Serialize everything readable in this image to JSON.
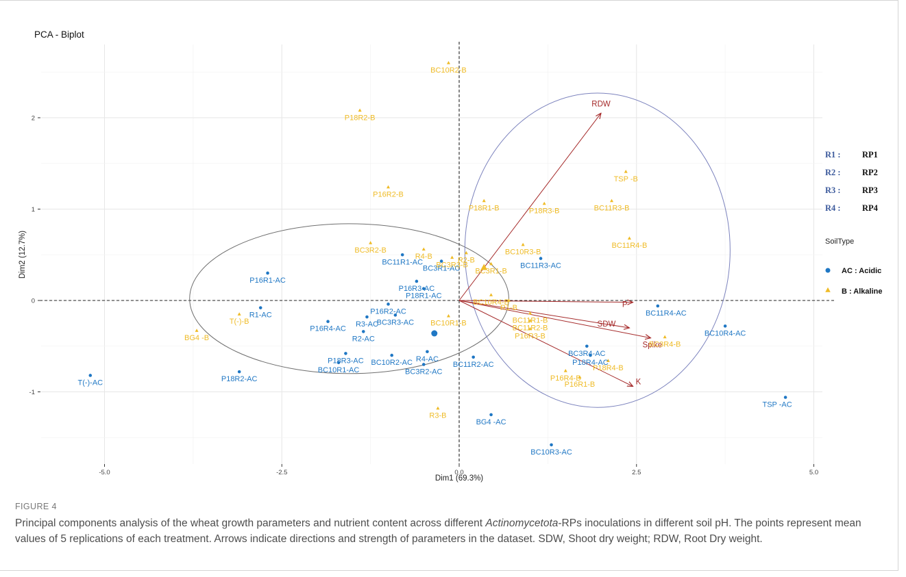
{
  "chart_data": {
    "type": "scatter",
    "title": "PCA - Biplot",
    "xlabel": "Dim1 (69.3%)",
    "ylabel": "Dim2 (12.7%)",
    "xlim": [
      -5.6,
      5.05
    ],
    "ylim": [
      -1.73,
      2.6
    ],
    "xticks": [
      -5.0,
      -2.5,
      0.0,
      2.5,
      5.0
    ],
    "xtick_labels": [
      "-5.0",
      "-2.5",
      "0.0",
      "2.5",
      "5.0"
    ],
    "yticks": [
      -1,
      0,
      1,
      2
    ],
    "ytick_labels": [
      "-1",
      "0",
      "1",
      "2"
    ],
    "grid": true,
    "colors": {
      "acidic": "#1f77c4",
      "alkaline": "#efbb26",
      "arrow": "#a52a2a",
      "ellipse_acidic": "#6e6e6e",
      "ellipse_alkaline": "#7b82bd"
    },
    "series": [
      {
        "name": "AC : Acidic",
        "marker": "circle",
        "points": [
          {
            "label": "T(-)-AC",
            "x": -5.2,
            "y": -0.82
          },
          {
            "label": "P18R2-AC",
            "x": -3.1,
            "y": -0.78
          },
          {
            "label": "P16R1-AC",
            "x": -2.7,
            "y": 0.3
          },
          {
            "label": "R1-AC",
            "x": -2.8,
            "y": -0.08
          },
          {
            "label": "P16R4-AC",
            "x": -1.85,
            "y": -0.23
          },
          {
            "label": "P18R3-AC",
            "x": -1.6,
            "y": -0.58
          },
          {
            "label": "BC10R1-AC",
            "x": -1.7,
            "y": -0.68
          },
          {
            "label": "R3-AC",
            "x": -1.3,
            "y": -0.18
          },
          {
            "label": "R2-AC",
            "x": -1.35,
            "y": -0.34
          },
          {
            "label": "P16R2-AC",
            "x": -1.0,
            "y": -0.04
          },
          {
            "label": "BC3R3-AC",
            "x": -0.9,
            "y": -0.16
          },
          {
            "label": "BC10R2-AC",
            "x": -0.95,
            "y": -0.6
          },
          {
            "label": "P16R3-AC",
            "x": -0.6,
            "y": 0.21
          },
          {
            "label": "P18R1-AC",
            "x": -0.5,
            "y": 0.13
          },
          {
            "label": "BC11R1-AC",
            "x": -0.8,
            "y": 0.5
          },
          {
            "label": "BC3R1-AC",
            "x": -0.25,
            "y": 0.43
          },
          {
            "label": "R4-AC",
            "x": -0.45,
            "y": -0.56
          },
          {
            "label": "BC3R2-AC",
            "x": -0.5,
            "y": -0.7
          },
          {
            "label": "BC11R2-AC",
            "x": 0.2,
            "y": -0.62
          },
          {
            "label": "BG4 -AC",
            "x": 0.45,
            "y": -1.25
          },
          {
            "label": "BC10R3-AC",
            "x": 1.3,
            "y": -1.58
          },
          {
            "label": "BC11R3-AC",
            "x": 1.15,
            "y": 0.46
          },
          {
            "label": "BC11R4-AC",
            "x": 2.8,
            "y": -0.06
          },
          {
            "label": "BC3R4-AC",
            "x": 1.8,
            "y": -0.5
          },
          {
            "label": "P18R4-AC",
            "x": 1.85,
            "y": -0.6
          },
          {
            "label": "BC10R4-AC",
            "x": 3.75,
            "y": -0.28
          },
          {
            "label": "TSP -AC",
            "x": 4.6,
            "y": -1.06
          }
        ]
      },
      {
        "name": "B : Alkaline",
        "marker": "triangle",
        "points": [
          {
            "label": "BC10R2-B",
            "x": -0.15,
            "y": 2.6
          },
          {
            "label": "P18R2-B",
            "x": -1.4,
            "y": 2.08
          },
          {
            "label": "P16R2-B",
            "x": -1.0,
            "y": 1.24
          },
          {
            "label": "BC3R2-B",
            "x": -1.25,
            "y": 0.63
          },
          {
            "label": "R4-B",
            "x": -0.5,
            "y": 0.56
          },
          {
            "label": "BC3R3-B",
            "x": -0.1,
            "y": 0.47
          },
          {
            "label": "R2-B",
            "x": 0.1,
            "y": 0.52
          },
          {
            "label": "T(-)-B",
            "x": -3.1,
            "y": -0.15
          },
          {
            "label": "BG4 -B",
            "x": -3.7,
            "y": -0.33
          },
          {
            "label": "BC10R1-B",
            "x": -0.15,
            "y": -0.17
          },
          {
            "label": "R3-B",
            "x": -0.3,
            "y": -1.18
          },
          {
            "label": "P18R1-B",
            "x": 0.35,
            "y": 1.09
          },
          {
            "label": "BC3R1-B",
            "x": 0.45,
            "y": 0.4
          },
          {
            "label": "BC10R4-B",
            "x": 0.45,
            "y": 0.06
          },
          {
            "label": "R1-B",
            "x": 0.7,
            "y": 0.0
          },
          {
            "label": "BC11R1-B",
            "x": 1.0,
            "y": -0.14
          },
          {
            "label": "BC11R2-B",
            "x": 1.0,
            "y": -0.22
          },
          {
            "label": "P16R3-B",
            "x": 1.0,
            "y": -0.31
          },
          {
            "label": "P18R3-B",
            "x": 1.2,
            "y": 1.06
          },
          {
            "label": "BC10R3-B",
            "x": 0.9,
            "y": 0.61
          },
          {
            "label": "TSP -B",
            "x": 2.35,
            "y": 1.41
          },
          {
            "label": "BC11R3-B",
            "x": 2.15,
            "y": 1.09
          },
          {
            "label": "BC11R4-B",
            "x": 2.4,
            "y": 0.68
          },
          {
            "label": "BC3R4-B",
            "x": 2.9,
            "y": -0.4
          },
          {
            "label": "P18R4-B",
            "x": 2.1,
            "y": -0.66
          },
          {
            "label": "P16R4-B",
            "x": 1.5,
            "y": -0.77
          },
          {
            "label": "P16R1-B",
            "x": 1.7,
            "y": -0.84
          }
        ]
      }
    ],
    "centroids": [
      {
        "series": "AC : Acidic",
        "x": -0.35,
        "y": -0.36
      },
      {
        "series": "B : Alkaline",
        "x": 0.35,
        "y": 0.36
      }
    ],
    "ellipses": [
      {
        "series": "AC : Acidic",
        "cx": -1.55,
        "cy": 0.02,
        "rx": 2.25,
        "ry": 0.82
      },
      {
        "series": "B : Alkaline",
        "cx": 1.95,
        "cy": 0.55,
        "rx": 1.87,
        "ry": 1.72
      }
    ],
    "loadings": [
      {
        "label": "RDW",
        "x": 2.0,
        "y": 2.05
      },
      {
        "label": "P",
        "x": 2.45,
        "y": -0.02
      },
      {
        "label": "SDW",
        "x": 2.4,
        "y": -0.3
      },
      {
        "label": "Spike",
        "x": 2.7,
        "y": -0.41
      },
      {
        "label": "K",
        "x": 2.45,
        "y": -0.94
      }
    ],
    "legend": {
      "position": "right",
      "key": [
        {
          "code": "R1 :",
          "name": "RP1"
        },
        {
          "code": "R2 :",
          "name": "RP2"
        },
        {
          "code": "R3 :",
          "name": "RP3"
        },
        {
          "code": "R4 :",
          "name": "RP4"
        }
      ],
      "title": "SoilType",
      "entries": [
        "AC : Acidic",
        "B : Alkaline"
      ]
    }
  },
  "caption": {
    "label": "FIGURE 4",
    "text_before": "Principal components analysis of the wheat growth parameters and nutrient content across different ",
    "text_italic": "Actinomycetota",
    "text_after": "-RPs inoculations in different soil pH. The points represent mean values of 5 replications of each treatment. Arrows indicate directions and strength of parameters in the dataset. SDW, Shoot dry weight; RDW, Root Dry weight."
  }
}
